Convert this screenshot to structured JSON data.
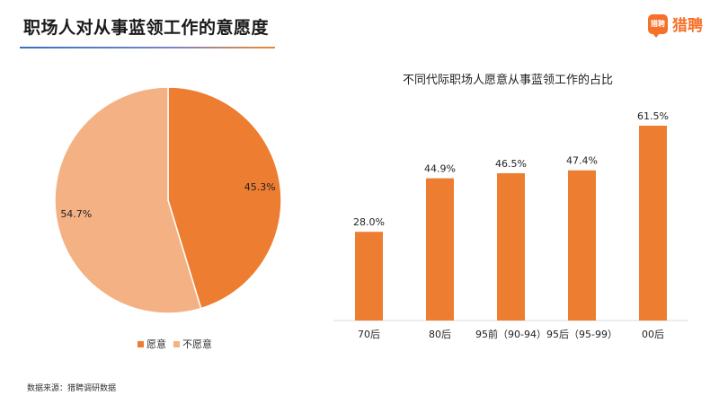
{
  "header": {
    "title": "职场人对从事蓝领工作的意愿度"
  },
  "logo": {
    "mark_text": "猎聘",
    "brand_text": "猎聘"
  },
  "footer": {
    "source": "数据来源：猎聘调研数据"
  },
  "colors": {
    "accent": "#ED7D31",
    "accent_light": "#F4B183",
    "text": "#222222"
  },
  "chart_data": [
    {
      "type": "pie",
      "title": "",
      "slices": [
        {
          "label": "愿意",
          "value": 45.3,
          "value_label": "45.3%",
          "color": "#ED7D31"
        },
        {
          "label": "不愿意",
          "value": 54.7,
          "value_label": "54.7%",
          "color": "#F4B183"
        }
      ],
      "legend_position": "bottom"
    },
    {
      "type": "bar",
      "title": "不同代际职场人愿意从事蓝领工作的占比",
      "categories": [
        "70后",
        "80后",
        "95前（90-94）",
        "95后（95-99）",
        "00后"
      ],
      "values": [
        28.0,
        44.9,
        46.5,
        47.4,
        61.5
      ],
      "value_labels": [
        "28.0%",
        "44.9%",
        "46.5%",
        "47.4%",
        "61.5%"
      ],
      "ylim": [
        0,
        70
      ],
      "color": "#ED7D31",
      "grid": false
    }
  ]
}
